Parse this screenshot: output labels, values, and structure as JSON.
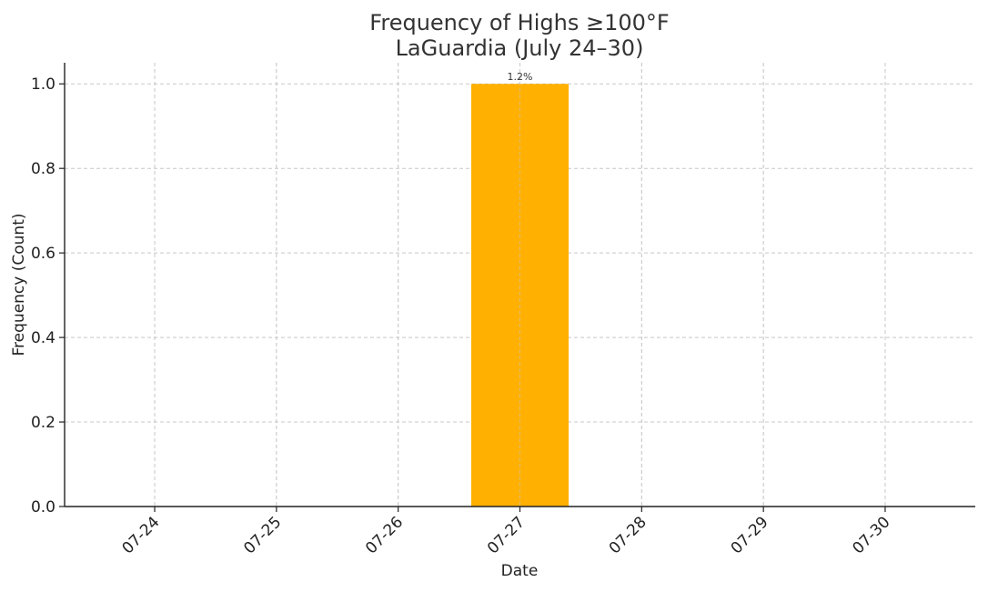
{
  "chart_data": {
    "type": "bar",
    "title": "Frequency of Highs ≥100°F",
    "subtitle": "LaGuardia (July 24–30)",
    "x_label": "Date",
    "y_label": "Frequency (Count)",
    "categories": [
      "07-24",
      "07-25",
      "07-26",
      "07-27",
      "07-28",
      "07-29",
      "07-30"
    ],
    "values": [
      0,
      0,
      0,
      1,
      0,
      0,
      0
    ],
    "color": "#ffb000",
    "annotations": [
      {
        "x": "07-27",
        "text": "1.2%"
      }
    ],
    "ylim": [
      0,
      1.05
    ],
    "yticks": [
      {
        "value": 0,
        "label": "0.0"
      },
      {
        "value": 0.2,
        "label": "0.2"
      },
      {
        "value": 0.4,
        "label": "0.4"
      },
      {
        "value": 0.6,
        "label": "0.6"
      },
      {
        "value": 0.8,
        "label": "0.8"
      },
      {
        "value": 1,
        "label": "1.0"
      }
    ],
    "grid": true
  }
}
